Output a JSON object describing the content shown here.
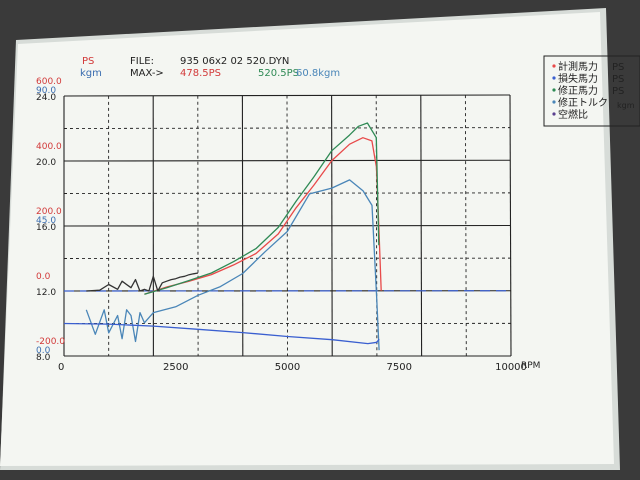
{
  "header": {
    "ps_unit": "PS",
    "kgm_unit": "kgm",
    "file_label": "FILE:",
    "file_name": "935 06x2 02 520.DYN",
    "max_label": "MAX->",
    "max_measured": "478.5PS",
    "max_corrected": "520.5PS",
    "max_torque": "60.8kgm"
  },
  "legend": [
    {
      "label": "計測馬力",
      "unit": "PS",
      "color": "#e84a4a"
    },
    {
      "label": "損失馬力",
      "unit": "PS",
      "color": "#3a5fd0"
    },
    {
      "label": "修正馬力",
      "unit": "PS",
      "color": "#2f8a55"
    },
    {
      "label": "修正トルク",
      "unit": "kgm",
      "color": "#4a86b8"
    },
    {
      "label": "空燃比",
      "unit": "",
      "color": "#5a3f8f"
    }
  ],
  "colors": {
    "paper": "#f4f6f2",
    "grid": "#222222",
    "red_axis": "#d23a3a",
    "blue_axis": "#3a6db0",
    "measured": "#e84a4a",
    "corrected": "#2f8a55",
    "torque": "#4a86b8",
    "loss": "#3a5fd0",
    "afr": "#333333"
  },
  "chart_data": {
    "type": "line",
    "xlabel": "RPM",
    "xlim": [
      0,
      10000
    ],
    "x_ticks": [
      "0",
      "2500",
      "5000",
      "7500",
      "10000"
    ],
    "axes": {
      "ps": {
        "unit": "PS",
        "range": [
          -200,
          600
        ],
        "ticks": [
          "600.0",
          "400.0",
          "200.0",
          "0.0",
          "-200.0"
        ]
      },
      "torque": {
        "unit": "kgm",
        "range": [
          0,
          90
        ],
        "ticks": [
          "90.0",
          "45.0",
          "0.0"
        ]
      },
      "afr": {
        "range": [
          8,
          24
        ],
        "ticks": [
          "24.0",
          "20.0",
          "16.0",
          "12.0",
          "8.0"
        ]
      }
    },
    "grid": true,
    "max": {
      "measured_ps": 478.5,
      "corrected_ps": 520.5,
      "torque_kgm": 60.8
    },
    "series": [
      {
        "name": "計測馬力",
        "axis": "ps",
        "x": [
          1800,
          2300,
          2800,
          3300,
          3800,
          4300,
          4800,
          5200,
          5600,
          6000,
          6400,
          6700,
          6900,
          7000,
          7050,
          7100
        ],
        "values": [
          -10,
          12,
          30,
          50,
          80,
          115,
          175,
          255,
          325,
          400,
          450,
          470,
          460,
          380,
          200,
          0
        ]
      },
      {
        "name": "修正馬力",
        "axis": "ps",
        "x": [
          1800,
          2300,
          2800,
          3300,
          3800,
          4300,
          4800,
          5200,
          5600,
          6000,
          6400,
          6600,
          6800,
          7000,
          7050
        ],
        "values": [
          -10,
          10,
          32,
          55,
          90,
          130,
          195,
          275,
          350,
          430,
          478,
          505,
          515,
          470,
          140
        ]
      },
      {
        "name": "修正トルク",
        "axis": "torque",
        "x": [
          500,
          700,
          900,
          1000,
          1200,
          1300,
          1400,
          1500,
          1600,
          1700,
          1800,
          2000,
          2500,
          3000,
          3500,
          4000,
          4500,
          5000,
          5500,
          6000,
          6400,
          6700,
          6900,
          7000,
          7050
        ],
        "values": [
          16,
          7.5,
          16,
          8,
          14,
          6,
          16,
          14,
          5,
          15,
          11.5,
          15,
          17,
          21,
          24,
          28.5,
          36,
          43,
          56,
          58,
          60.8,
          57,
          52,
          20,
          2
        ]
      },
      {
        "name": "損失馬力",
        "axis": "ps",
        "x": [
          0,
          1000,
          2000,
          3000,
          4000,
          5000,
          6000,
          6800,
          7000,
          7050
        ],
        "values": [
          -100,
          -102,
          -108,
          -118,
          -128,
          -140,
          -150,
          -162,
          -158,
          -148
        ]
      },
      {
        "name": "空燃比",
        "axis": "afr",
        "x": [
          500,
          800,
          1000,
          1200,
          1300,
          1500,
          1600,
          1700,
          1800,
          1900,
          2000,
          2100,
          2200,
          2300,
          2400,
          2500,
          2600,
          2700,
          2800,
          2900,
          3000
        ],
        "values": [
          12.0,
          12.05,
          12.4,
          12.1,
          12.6,
          12.2,
          12.7,
          12.0,
          12.1,
          12.0,
          12.9,
          12.0,
          12.5,
          12.6,
          12.7,
          12.75,
          12.85,
          12.9,
          13.0,
          13.05,
          13.1
        ]
      }
    ],
    "reference_lines": [
      {
        "axis": "afr",
        "value": 12.0,
        "style": "dashed"
      }
    ]
  }
}
